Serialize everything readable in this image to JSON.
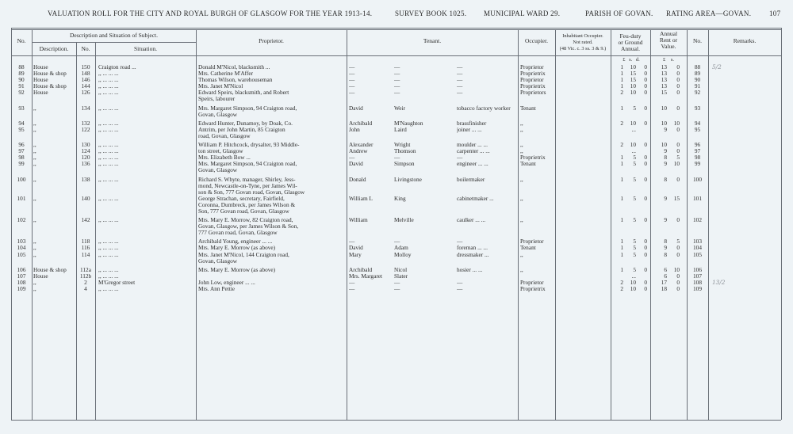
{
  "header": {
    "title": "VALUATION ROLL FOR THE CITY AND ROYAL BURGH OF GLASGOW FOR THE YEAR 1913-14.",
    "survey": "SURVEY BOOK 1025.",
    "ward": "MUNICIPAL WARD 29.",
    "parish": "PARISH OF GOVAN.",
    "area": "RATING AREA—GOVAN.",
    "page": "107"
  },
  "table": {
    "headers": {
      "no": "No.",
      "group": "Description and Situation of Subject.",
      "desc": "Description.",
      "hno": "No.",
      "sit": "Situation.",
      "prop": "Proprietor.",
      "tenant": "Tenant.",
      "occ": "Occupier.",
      "inhab": [
        "Inhabitant Occupier.",
        "Not rated.",
        "(48 Vic. c. 3 ss. 3 & 9.)"
      ],
      "feu": [
        "Feu-duty",
        "or Ground",
        "Annual."
      ],
      "rent": [
        "Annual",
        "Rent or",
        "Value."
      ],
      "no2": "No.",
      "rem": "Remarks.",
      "feu_units": "£ s. d.",
      "rent_units": "£ s."
    },
    "rows": [
      {
        "no": "88",
        "desc": "House",
        "hno": "150",
        "sit": "Craigton road ...",
        "prop": "Donald M'Nicol, blacksmith ...",
        "t1": "—",
        "t2": "—",
        "t3": "—",
        "occ": "Proprietor",
        "fl": "1",
        "fs": "10",
        "fd": "0",
        "rl": "13",
        "rs": "0",
        "no2": "88",
        "rem": "5/2"
      },
      {
        "no": "89",
        "desc": "House & shop",
        "hno": "148",
        "sit": ",, ... ... ...",
        "prop": "Mrs. Catherine M'Affer",
        "t1": "—",
        "t2": "—",
        "t3": "—",
        "occ": "Proprietrix",
        "fl": "1",
        "fs": "15",
        "fd": "0",
        "rl": "13",
        "rs": "0",
        "no2": "89"
      },
      {
        "no": "90",
        "desc": "House",
        "hno": "146",
        "sit": ",, ... ... ...",
        "prop": "Thomas Wilson, warehouseman",
        "t1": "—",
        "t2": "—",
        "t3": "—",
        "occ": "Proprietor",
        "fl": "1",
        "fs": "15",
        "fd": "0",
        "rl": "13",
        "rs": "0",
        "no2": "90"
      },
      {
        "no": "91",
        "desc": "House & shop",
        "hno": "144",
        "sit": ",, ... ... ...",
        "prop": "Mrs. Janet M'Nicol",
        "t1": "—",
        "t2": "—",
        "t3": "—",
        "occ": "Proprietrix",
        "fl": "1",
        "fs": "10",
        "fd": "0",
        "rl": "13",
        "rs": "0",
        "no2": "91"
      },
      {
        "no": "92",
        "desc": "House",
        "hno": "126",
        "sit": ",, ... ... ...",
        "prop": "Edward Speirs, blacksmith, and Robert",
        "t1": "—",
        "t2": "—",
        "t3": "—",
        "occ": "Proprietors",
        "fl": "2",
        "fs": "10",
        "fd": "0",
        "rl": "15",
        "rs": "0",
        "no2": "92"
      },
      {
        "prop": "Speirs, labourer"
      },
      {
        "no": "93",
        "desc": ",,",
        "hno": "134",
        "sit": ",, ... ... ...",
        "prop": "Mrs. Margaret Simpson, 94 Craigton road,",
        "t1": "David",
        "t2": "Weir",
        "t3": "tobacco factory worker",
        "occ": "Tenant",
        "fl": "1",
        "fs": "5",
        "fd": "0",
        "rl": "10",
        "rs": "0",
        "no2": "93"
      },
      {
        "prop": "Govan, Glasgow"
      },
      {
        "no": "94",
        "desc": ",,",
        "hno": "132",
        "sit": ",, ... ... ...",
        "prop": "Edward Hunter, Dunamoy, by Doak, Co.",
        "t1": "Archibald",
        "t2": "M'Naughton",
        "t3": "brassfinisher",
        "occ": ",,",
        "fl": "2",
        "fs": "10",
        "fd": "0",
        "rl": "10",
        "rs": "10",
        "no2": "94"
      },
      {
        "no": "95",
        "desc": ",,",
        "hno": "122",
        "sit": ",, ... ... ...",
        "prop": "Antrim, per John Martin, 85 Craigton",
        "t1": "John",
        "t2": "Laird",
        "t3": "joiner ... ...",
        "occ": ",,",
        "fs": "...",
        "rl": "9",
        "rs": "0",
        "no2": "95"
      },
      {
        "prop": "road, Govan, Glasgow"
      },
      {
        "no": "96",
        "desc": ",,",
        "hno": "130",
        "sit": ",, ... ... ...",
        "prop": "William P. Hitchcock, drysalter, 93 Middle-",
        "t1": "Alexander",
        "t2": "Wright",
        "t3": "moulder ... ...",
        "occ": ",,",
        "fl": "2",
        "fs": "10",
        "fd": "0",
        "rl": "10",
        "rs": "0",
        "no2": "96"
      },
      {
        "no": "97",
        "desc": ",,",
        "hno": "124",
        "sit": ",, ... ... ...",
        "prop": "ton street, Glasgow",
        "t1": "Andrew",
        "t2": "Thomson",
        "t3": "carpenter ... ...",
        "occ": ",,",
        "fs": "...",
        "rl": "9",
        "rs": "0",
        "no2": "97"
      },
      {
        "no": "98",
        "desc": ",,",
        "hno": "120",
        "sit": ",, ... ... ...",
        "prop": "Mrs. Elizabeth Bow ...",
        "t1": "—",
        "t2": "—",
        "t3": "—",
        "occ": "Proprietrix",
        "fl": "1",
        "fs": "5",
        "fd": "0",
        "rl": "8",
        "rs": "5",
        "no2": "98"
      },
      {
        "no": "99",
        "desc": ",,",
        "hno": "136",
        "sit": ",, ... ... ...",
        "prop": "Mrs. Margaret Simpson, 94 Craigton road,",
        "t1": "David",
        "t2": "Simpson",
        "t3": "engineer ... ...",
        "occ": "Tenant",
        "fl": "1",
        "fs": "5",
        "fd": "0",
        "rl": "9",
        "rs": "10",
        "no2": "99"
      },
      {
        "prop": "Govan, Glasgow"
      },
      {
        "no": "100",
        "desc": ",,",
        "hno": "138",
        "sit": ",, ... ... ...",
        "prop": "Richard S. Whyte, manager, Shirley, Jess-",
        "t1": "Donald",
        "t2": "Livingstone",
        "t3": "boilermaker",
        "occ": ",,",
        "fl": "1",
        "fs": "5",
        "fd": "0",
        "rl": "8",
        "rs": "0",
        "no2": "100"
      },
      {
        "prop": "mond, Newcastle-on-Tyne, per James Wil-"
      },
      {
        "prop": "son & Son, 777 Govan road, Govan, Glasgow"
      },
      {
        "no": "101",
        "desc": ",,",
        "hno": "140",
        "sit": ",, ... ... ...",
        "prop": "George Strachan, secretary, Fairfield,",
        "t1": "William L",
        "t2": "King",
        "t3": "cabinetmaker ...",
        "occ": ",,",
        "fl": "1",
        "fs": "5",
        "fd": "0",
        "rl": "9",
        "rs": "15",
        "no2": "101"
      },
      {
        "prop": "Coronna, Dumbreck, per James Wilson &"
      },
      {
        "prop": "Son, 777 Govan road, Govan, Glasgow"
      },
      {
        "no": "102",
        "desc": ",,",
        "hno": "142",
        "sit": ",, ... ... ...",
        "prop": "Mrs. Mary E. Morrow, 82 Craigton road,",
        "t1": "William",
        "t2": "Melville",
        "t3": "caulker ... ...",
        "occ": ",,",
        "fl": "1",
        "fs": "5",
        "fd": "0",
        "rl": "9",
        "rs": "0",
        "no2": "102"
      },
      {
        "prop": "Govan, Glasgow, per James Wilson & Son,"
      },
      {
        "prop": "777 Govan road, Govan, Glasgow"
      },
      {
        "no": "103",
        "desc": ",,",
        "hno": "118",
        "sit": ",, ... ... ...",
        "prop": "Archibald Young, engineer ... ...",
        "t1": "—",
        "t2": "—",
        "t3": "—",
        "occ": "Proprietor",
        "fl": "1",
        "fs": "5",
        "fd": "0",
        "rl": "8",
        "rs": "5",
        "no2": "103"
      },
      {
        "no": "104",
        "desc": ",,",
        "hno": "116",
        "sit": ",, ... ... ...",
        "prop": "Mrs. Mary E. Morrow (as above)",
        "t1": "David",
        "t2": "Adam",
        "t3": "foreman ... ...",
        "occ": "Tenant",
        "fl": "1",
        "fs": "5",
        "fd": "0",
        "rl": "9",
        "rs": "0",
        "no2": "104"
      },
      {
        "no": "105",
        "desc": ",,",
        "hno": "114",
        "sit": ",, ... ... ...",
        "prop": "Mrs. Janet M'Nicol, 144 Craigton road,",
        "t1": "Mary",
        "t2": "Molloy",
        "t3": "dressmaker ...",
        "occ": ",,",
        "fl": "1",
        "fs": "5",
        "fd": "0",
        "rl": "8",
        "rs": "0",
        "no2": "105"
      },
      {
        "prop": "Govan, Glasgow"
      },
      {
        "no": "106",
        "desc": "House & shop",
        "hno": "112a",
        "sit": ",, ... ... ...",
        "prop": "Mrs. Mary E. Morrow (as above)",
        "t1": "Archibald",
        "t2": "Nicol",
        "t3": "hosier ... ...",
        "occ": ",,",
        "fl": "1",
        "fs": "5",
        "fd": "0",
        "rl": "6",
        "rs": "10",
        "no2": "106"
      },
      {
        "no": "107",
        "desc": "House",
        "hno": "112b",
        "sit": ",, ... ... ...",
        "t1": "Mrs. Margaret",
        "t2": "Slater",
        "fs": "...",
        "rl": "6",
        "rs": "0",
        "no2": "107"
      },
      {
        "no": "108",
        "desc": ",,",
        "hno": "2",
        "sit": "M'Gregor street",
        "prop": "John Low, engineer ... ...",
        "t1": "—",
        "t2": "—",
        "t3": "—",
        "occ": "Proprietor",
        "fl": "2",
        "fs": "10",
        "fd": "0",
        "rl": "17",
        "rs": "0",
        "no2": "108",
        "rem": "13/2"
      },
      {
        "no": "109",
        "desc": ",,",
        "hno": "4",
        "sit": ",, ... ... ...",
        "prop": "Mrs. Ann Pettie",
        "t1": "—",
        "t2": "—",
        "t3": "—",
        "occ": "Proprietrix",
        "fl": "2",
        "fs": "10",
        "fd": "0",
        "rl": "18",
        "rs": "0",
        "no2": "109"
      }
    ]
  }
}
